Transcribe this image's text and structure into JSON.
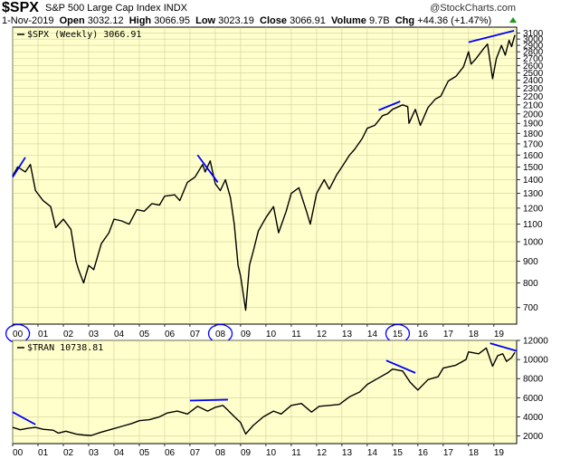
{
  "header": {
    "ticker": "$SPX",
    "name": "S&P 500 Large Cap Index",
    "exchange": "INDX",
    "credit": "@StockCharts.com",
    "date": "1-Nov-2019",
    "open_label": "Open",
    "open": "3032.12",
    "high_label": "High",
    "high": "3066.95",
    "low_label": "Low",
    "low": "3023.19",
    "close_label": "Close",
    "close": "3066.91",
    "volume_label": "Volume",
    "volume": "9.7B",
    "chg_label": "Chg",
    "chg": "+44.36 (+1.47%)"
  },
  "colors": {
    "plot_bg": "#ffffcc",
    "line": "#000000",
    "trend": "#0000ff",
    "grid": "#cfcf9a",
    "up_arrow": "#1a9a1a"
  },
  "chart_data": [
    {
      "type": "line",
      "legend": "$SPX (Weekly) 3066.91",
      "y_scale": "log",
      "ylim": [
        640,
        3200
      ],
      "y_ticks": [
        700,
        800,
        900,
        1000,
        1100,
        1200,
        1300,
        1400,
        1500,
        1600,
        1700,
        1800,
        1900,
        2000,
        2100,
        2200,
        2300,
        2400,
        2500,
        2600,
        2700,
        2800,
        2900,
        3000,
        3100
      ],
      "x_ticks": [
        "00",
        "01",
        "02",
        "03",
        "04",
        "05",
        "06",
        "07",
        "08",
        "09",
        "10",
        "11",
        "12",
        "13",
        "14",
        "15",
        "16",
        "17",
        "18",
        "19"
      ],
      "circled_ticks": [
        "00",
        "08",
        "15"
      ],
      "xlim": [
        2000.0,
        2019.9
      ],
      "series": [
        {
          "x": [
            2000.0,
            2000.2,
            2000.5,
            2000.7,
            2000.9,
            2001.2,
            2001.5,
            2001.7,
            2002.0,
            2002.3,
            2002.5,
            2002.6,
            2002.8,
            2003.0,
            2003.2,
            2003.5,
            2003.8,
            2004.0,
            2004.3,
            2004.6,
            2004.9,
            2005.2,
            2005.5,
            2005.8,
            2006.0,
            2006.4,
            2006.6,
            2006.9,
            2007.2,
            2007.5,
            2007.6,
            2007.8,
            2008.0,
            2008.2,
            2008.4,
            2008.6,
            2008.75,
            2008.9,
            2009.0,
            2009.2,
            2009.35,
            2009.5,
            2009.7,
            2010.0,
            2010.3,
            2010.5,
            2010.8,
            2011.0,
            2011.3,
            2011.6,
            2011.75,
            2012.0,
            2012.3,
            2012.5,
            2012.8,
            2013.0,
            2013.3,
            2013.5,
            2013.8,
            2014.0,
            2014.3,
            2014.6,
            2014.8,
            2015.0,
            2015.4,
            2015.6,
            2015.65,
            2015.9,
            2016.1,
            2016.4,
            2016.7,
            2016.9,
            2017.2,
            2017.5,
            2017.8,
            2018.0,
            2018.1,
            2018.3,
            2018.6,
            2018.75,
            2018.95,
            2019.1,
            2019.3,
            2019.45,
            2019.6,
            2019.7,
            2019.83
          ],
          "values": [
            1430,
            1500,
            1460,
            1520,
            1320,
            1250,
            1210,
            1080,
            1130,
            1070,
            900,
            860,
            800,
            880,
            860,
            990,
            1050,
            1130,
            1120,
            1100,
            1190,
            1180,
            1230,
            1220,
            1280,
            1290,
            1250,
            1380,
            1420,
            1520,
            1460,
            1550,
            1370,
            1320,
            1400,
            1270,
            1100,
            880,
            830,
            690,
            880,
            950,
            1060,
            1140,
            1210,
            1050,
            1180,
            1300,
            1340,
            1180,
            1100,
            1300,
            1400,
            1330,
            1440,
            1500,
            1600,
            1650,
            1750,
            1850,
            1880,
            1980,
            2000,
            2050,
            2100,
            2080,
            1900,
            2050,
            1880,
            2070,
            2170,
            2200,
            2390,
            2450,
            2580,
            2800,
            2620,
            2700,
            2850,
            2920,
            2420,
            2700,
            2900,
            2750,
            2980,
            2880,
            3067
          ]
        }
      ],
      "annotations": [
        {
          "x": [
            2000.0,
            2000.5
          ],
          "values": [
            1420,
            1580
          ]
        },
        {
          "x": [
            2007.3,
            2008.1
          ],
          "values": [
            1600,
            1380
          ]
        },
        {
          "x": [
            2014.45,
            2015.3
          ],
          "values": [
            2040,
            2140
          ]
        },
        {
          "x": [
            2018.0,
            2019.8
          ],
          "values": [
            2950,
            3140
          ]
        }
      ]
    },
    {
      "type": "line",
      "legend": "$TRAN 10738.81",
      "ylim": [
        1200,
        12000
      ],
      "y_ticks": [
        2000,
        4000,
        6000,
        8000,
        10000,
        12000
      ],
      "x_ticks": [
        "00",
        "01",
        "02",
        "03",
        "04",
        "05",
        "06",
        "07",
        "08",
        "09",
        "10",
        "11",
        "12",
        "13",
        "14",
        "15",
        "16",
        "17",
        "18",
        "19"
      ],
      "xlim": [
        2000.0,
        2019.9
      ],
      "series": [
        {
          "x": [
            2000.0,
            2000.3,
            2000.6,
            2000.9,
            2001.2,
            2001.6,
            2001.8,
            2002.1,
            2002.5,
            2002.8,
            2003.1,
            2003.5,
            2003.9,
            2004.3,
            2004.7,
            2005.0,
            2005.4,
            2005.8,
            2006.1,
            2006.5,
            2006.9,
            2007.3,
            2007.7,
            2008.0,
            2008.3,
            2008.5,
            2008.8,
            2009.0,
            2009.2,
            2009.5,
            2009.9,
            2010.3,
            2010.6,
            2011.0,
            2011.4,
            2011.8,
            2012.1,
            2012.5,
            2012.9,
            2013.3,
            2013.7,
            2014.0,
            2014.4,
            2014.8,
            2015.0,
            2015.4,
            2015.7,
            2016.0,
            2016.4,
            2016.8,
            2017.0,
            2017.5,
            2017.9,
            2018.0,
            2018.4,
            2018.7,
            2018.95,
            2019.15,
            2019.35,
            2019.5,
            2019.7,
            2019.83
          ],
          "values": [
            2900,
            2650,
            2800,
            2900,
            2700,
            2600,
            2300,
            2500,
            2200,
            2100,
            2050,
            2400,
            2700,
            3000,
            3300,
            3600,
            3700,
            4000,
            4400,
            4600,
            4300,
            5100,
            4600,
            5000,
            5200,
            4700,
            3900,
            3400,
            2200,
            3100,
            4000,
            4600,
            4300,
            5200,
            5400,
            4500,
            5100,
            5200,
            5300,
            6100,
            6600,
            7400,
            8000,
            8600,
            9000,
            8800,
            7600,
            6800,
            7900,
            8200,
            9100,
            9400,
            10000,
            10800,
            10600,
            11200,
            9300,
            10400,
            10600,
            9800,
            10200,
            10739
          ]
        }
      ],
      "annotations": [
        {
          "x": [
            2000.0,
            2000.9
          ],
          "values": [
            4500,
            3200
          ]
        },
        {
          "x": [
            2007.0,
            2008.5
          ],
          "values": [
            5700,
            5800
          ]
        },
        {
          "x": [
            2014.75,
            2015.9
          ],
          "values": [
            9900,
            8600
          ]
        },
        {
          "x": [
            2018.85,
            2019.9
          ],
          "values": [
            11700,
            10900
          ]
        }
      ]
    }
  ]
}
